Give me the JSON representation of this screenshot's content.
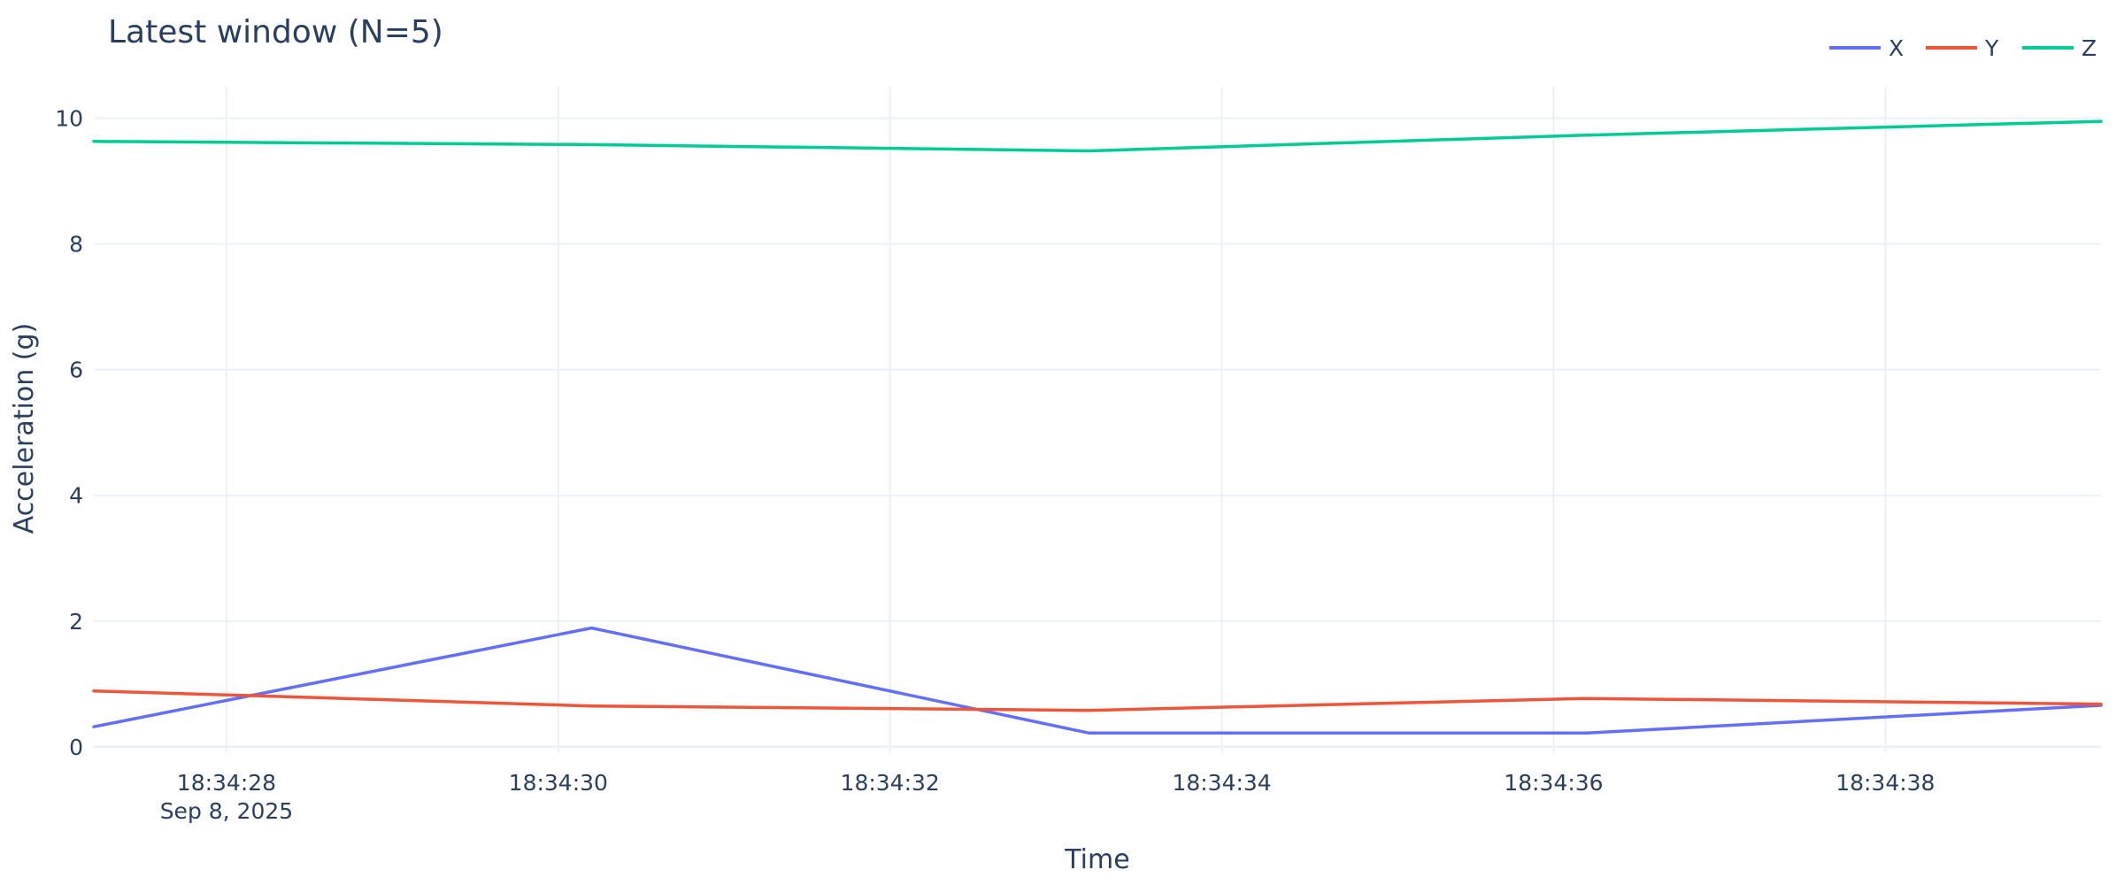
{
  "chart_data": {
    "type": "line",
    "title": "Latest window (N=5)",
    "xlabel": "Time",
    "ylabel": "Acceleration (g)",
    "x": [
      "2025-09-08T18:34:27.2",
      "2025-09-08T18:34:30.2",
      "2025-09-08T18:34:33.2",
      "2025-09-08T18:34:36.2",
      "2025-09-08T18:34:39.3"
    ],
    "xlim": [
      "2025-09-08T18:34:27.2",
      "2025-09-08T18:34:39.3"
    ],
    "ylim": [
      -0.1,
      10.5
    ],
    "x_ticks": [
      {
        "time": "2025-09-08T18:34:28",
        "label": "18:34:28",
        "sublabel": "Sep 8, 2025"
      },
      {
        "time": "2025-09-08T18:34:30",
        "label": "18:34:30"
      },
      {
        "time": "2025-09-08T18:34:32",
        "label": "18:34:32"
      },
      {
        "time": "2025-09-08T18:34:34",
        "label": "18:34:34"
      },
      {
        "time": "2025-09-08T18:34:36",
        "label": "18:34:36"
      },
      {
        "time": "2025-09-08T18:34:38",
        "label": "18:34:38"
      }
    ],
    "y_ticks": [
      0,
      2,
      4,
      6,
      8,
      10
    ],
    "grid": true,
    "legend_position": "top-right",
    "series": [
      {
        "name": "X",
        "color": "#636efa",
        "values": [
          0.32,
          1.89,
          0.22,
          0.22,
          0.66
        ]
      },
      {
        "name": "Y",
        "color": "#ef553b",
        "values": [
          0.89,
          0.65,
          0.58,
          0.77,
          0.68
        ]
      },
      {
        "name": "Z",
        "color": "#00cc96",
        "values": [
          9.63,
          9.58,
          9.48,
          9.73,
          9.95
        ]
      }
    ]
  }
}
